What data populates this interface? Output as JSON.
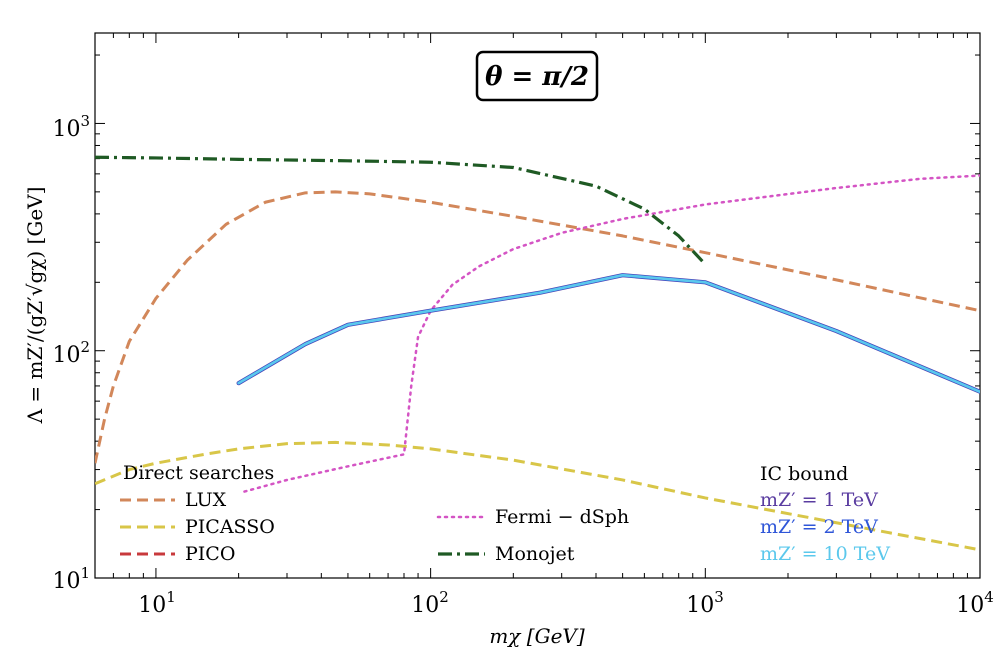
{
  "chart_data": {
    "type": "line",
    "title": "θ = π/2",
    "xlabel": "mχ [GeV]",
    "ylabel": "Λ = mZ′/(gZ′√gχ) [GeV]",
    "xscale": "log",
    "yscale": "log",
    "xlim": [
      6,
      10000
    ],
    "ylim": [
      10,
      2500
    ],
    "x_ticks": [
      {
        "base": "10",
        "exp": "1"
      },
      {
        "base": "10",
        "exp": "2"
      },
      {
        "base": "10",
        "exp": "3"
      },
      {
        "base": "10",
        "exp": "4"
      }
    ],
    "y_ticks": [
      {
        "base": "10",
        "exp": "1"
      },
      {
        "base": "10",
        "exp": "2"
      },
      {
        "base": "10",
        "exp": "3"
      }
    ],
    "legend_groups": [
      {
        "heading": "Direct searches",
        "placement": "bottom-left"
      },
      {
        "heading": "IC bound",
        "placement": "bottom-right"
      }
    ],
    "series": [
      {
        "name": "LUX",
        "group": "Direct searches",
        "style": "dashed",
        "color": "#d2875a",
        "x": [
          6,
          6.5,
          7,
          8,
          10,
          13,
          18,
          25,
          35,
          45,
          60,
          100,
          200,
          500,
          1000,
          3000,
          10000
        ],
        "y": [
          32,
          50,
          70,
          110,
          170,
          250,
          360,
          450,
          495,
          500,
          490,
          450,
          390,
          320,
          270,
          205,
          150
        ]
      },
      {
        "name": "PICASSO",
        "group": "Direct searches",
        "style": "dashed",
        "color": "#d8c648",
        "x": [
          6,
          8,
          10,
          15,
          20,
          30,
          45,
          70,
          100,
          200,
          500,
          1000,
          3000,
          10000
        ],
        "y": [
          26,
          30,
          32,
          35,
          37,
          39,
          39.5,
          38.5,
          37,
          33,
          27,
          22.5,
          17.5,
          13.3
        ]
      },
      {
        "name": "PICO",
        "group": "Direct searches",
        "style": "dashed",
        "color": "#c8393c",
        "x": [],
        "y": []
      },
      {
        "name": "Fermi − dSph",
        "style": "dotted",
        "color": "#d454c4",
        "x": [
          21,
          30,
          50,
          80,
          85,
          90,
          100,
          120,
          150,
          200,
          300,
          500,
          1000,
          3000,
          6000,
          10000
        ],
        "y": [
          24,
          27,
          31,
          35,
          70,
          115,
          150,
          195,
          235,
          280,
          330,
          380,
          440,
          520,
          570,
          590
        ]
      },
      {
        "name": "Monojet",
        "style": "dashdot",
        "color": "#1f5a24",
        "x": [
          6,
          10,
          20,
          50,
          100,
          200,
          400,
          600,
          800,
          1000
        ],
        "y": [
          710,
          705,
          695,
          685,
          675,
          640,
          530,
          420,
          320,
          240
        ]
      },
      {
        "name": "mZ′ = 1 TeV",
        "group": "IC bound",
        "style": "solid",
        "color": "#5a3ca0",
        "x": [
          20,
          35,
          50,
          100,
          250,
          500,
          1000,
          3000,
          10000
        ],
        "y": [
          72,
          107,
          130,
          150,
          180,
          215,
          200,
          122,
          66
        ]
      },
      {
        "name": "mZ′ = 2 TeV",
        "group": "IC bound",
        "style": "solid",
        "color": "#2f56d8",
        "x": [
          20,
          35,
          50,
          100,
          250,
          500,
          1000,
          3000,
          10000
        ],
        "y": [
          72,
          107,
          130,
          150,
          180,
          215,
          200,
          122,
          66
        ]
      },
      {
        "name": "mZ′ = 10 TeV",
        "group": "IC bound",
        "style": "solid",
        "color": "#5bc8ec",
        "x": [
          20,
          35,
          50,
          100,
          250,
          500,
          1000,
          3000,
          10000
        ],
        "y": [
          72,
          107,
          130,
          150,
          180,
          215,
          200,
          122,
          66
        ]
      }
    ]
  }
}
